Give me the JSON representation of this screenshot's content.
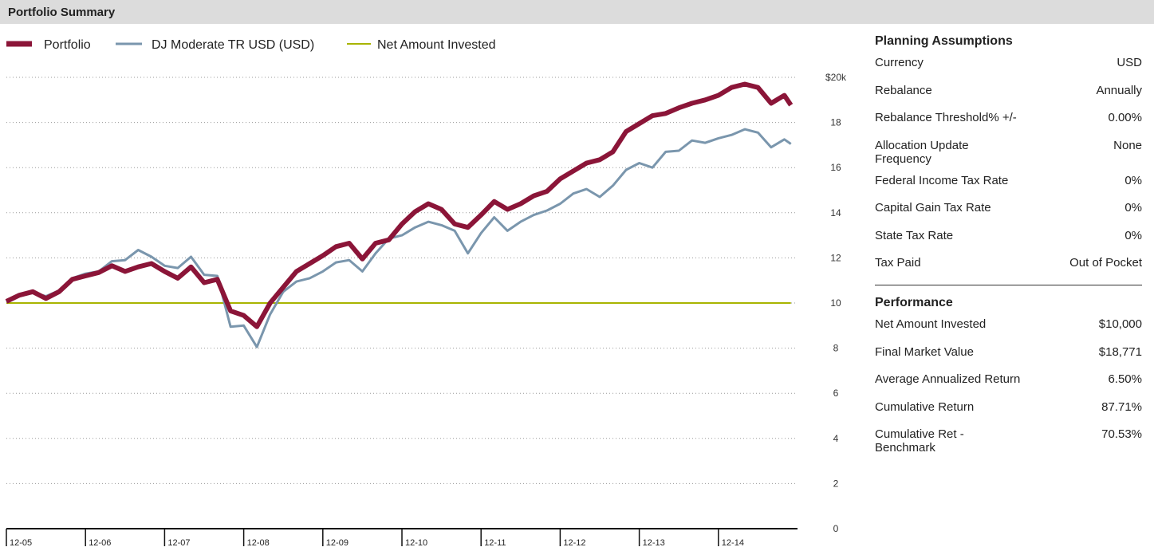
{
  "header": {
    "title": "Portfolio Summary"
  },
  "chart_data": {
    "type": "line",
    "grid": true,
    "legend": "top-left",
    "x": [
      0,
      2,
      4,
      6,
      8,
      10,
      12,
      14,
      16,
      18,
      20,
      22,
      24,
      26,
      28,
      30,
      32,
      34,
      36,
      38,
      40,
      42,
      44,
      46,
      48,
      50,
      52,
      54,
      56,
      58,
      60,
      62,
      64,
      66,
      68,
      70,
      72,
      74,
      76,
      78,
      80,
      82,
      84,
      86,
      88,
      90,
      92,
      94,
      96,
      98,
      100,
      102,
      104,
      106,
      108,
      110,
      112,
      114,
      116,
      118,
      119
    ],
    "xlim": [
      0,
      120
    ],
    "xticks": [
      {
        "value": 0,
        "label": "12-05"
      },
      {
        "value": 12,
        "label": "12-06"
      },
      {
        "value": 24,
        "label": "12-07"
      },
      {
        "value": 36,
        "label": "12-08"
      },
      {
        "value": 48,
        "label": "12-09"
      },
      {
        "value": 60,
        "label": "12-10"
      },
      {
        "value": 72,
        "label": "12-11"
      },
      {
        "value": 84,
        "label": "12-12"
      },
      {
        "value": 96,
        "label": "12-13"
      },
      {
        "value": 108,
        "label": "12-14"
      }
    ],
    "ylim": [
      0,
      20
    ],
    "yticks": [
      0,
      2,
      4,
      6,
      8,
      10,
      12,
      14,
      16,
      18,
      {
        "value": 20,
        "label": "$20k"
      }
    ],
    "series": [
      {
        "name": "Portfolio",
        "color": "#8b1538",
        "values": [
          10.07,
          10.35,
          10.5,
          10.2,
          10.5,
          11.05,
          11.2,
          11.35,
          11.65,
          11.4,
          11.6,
          11.75,
          11.4,
          11.1,
          11.6,
          10.9,
          11.05,
          9.65,
          9.45,
          8.95,
          10.0,
          10.7,
          11.4,
          11.75,
          12.1,
          12.5,
          12.65,
          11.95,
          12.65,
          12.8,
          13.5,
          14.05,
          14.4,
          14.15,
          13.5,
          13.35,
          13.9,
          14.5,
          14.15,
          14.4,
          14.75,
          14.95,
          15.5,
          15.85,
          16.2,
          16.35,
          16.7,
          17.6,
          17.95,
          18.3,
          18.4,
          18.65,
          18.85,
          19.0,
          19.2,
          19.55,
          19.7,
          19.55,
          18.85,
          19.2,
          18.77
        ]
      },
      {
        "name": "DJ Moderate TR USD (USD)",
        "color": "#7a96ad",
        "values": [
          10.05,
          10.3,
          10.45,
          10.3,
          10.55,
          11.1,
          11.3,
          11.4,
          11.85,
          11.9,
          12.35,
          12.05,
          11.65,
          11.55,
          12.05,
          11.25,
          11.2,
          8.95,
          9.0,
          8.05,
          9.5,
          10.5,
          10.95,
          11.1,
          11.4,
          11.8,
          11.9,
          11.4,
          12.2,
          12.85,
          13.0,
          13.35,
          13.6,
          13.45,
          13.2,
          12.2,
          13.1,
          13.8,
          13.2,
          13.6,
          13.9,
          14.1,
          14.4,
          14.85,
          15.05,
          14.7,
          15.2,
          15.9,
          16.2,
          16.0,
          16.7,
          16.75,
          17.2,
          17.1,
          17.3,
          17.45,
          17.7,
          17.55,
          16.9,
          17.25,
          17.05
        ]
      },
      {
        "name": "Net Amount Invested",
        "color": "#a8b400",
        "values": [
          10,
          10,
          10,
          10,
          10,
          10,
          10,
          10,
          10,
          10,
          10,
          10,
          10,
          10,
          10,
          10,
          10,
          10,
          10,
          10,
          10,
          10,
          10,
          10,
          10,
          10,
          10,
          10,
          10,
          10,
          10,
          10,
          10,
          10,
          10,
          10,
          10,
          10,
          10,
          10,
          10,
          10,
          10,
          10,
          10,
          10,
          10,
          10,
          10,
          10,
          10,
          10,
          10,
          10,
          10,
          10,
          10,
          10,
          10,
          10,
          10
        ]
      }
    ]
  },
  "planning": {
    "title": "Planning Assumptions",
    "rows": [
      [
        "Currency",
        "USD"
      ],
      [
        "Rebalance",
        "Annually"
      ],
      [
        "Rebalance Threshold% +/-",
        "0.00%"
      ],
      [
        "Allocation Update Frequency",
        "None"
      ],
      [
        "Federal Income Tax Rate",
        "0%"
      ],
      [
        "Capital Gain Tax Rate",
        "0%"
      ],
      [
        "State Tax Rate",
        "0%"
      ],
      [
        "Tax Paid",
        "Out of Pocket"
      ]
    ]
  },
  "performance": {
    "title": "Performance",
    "rows": [
      [
        "Net Amount Invested",
        "$10,000"
      ],
      [
        "Final Market Value",
        "$18,771"
      ],
      [
        "Average Annualized Return",
        "6.50%"
      ],
      [
        "Cumulative Return",
        "87.71%"
      ],
      [
        "Cumulative Ret - Benchmark",
        "70.53%"
      ]
    ]
  }
}
